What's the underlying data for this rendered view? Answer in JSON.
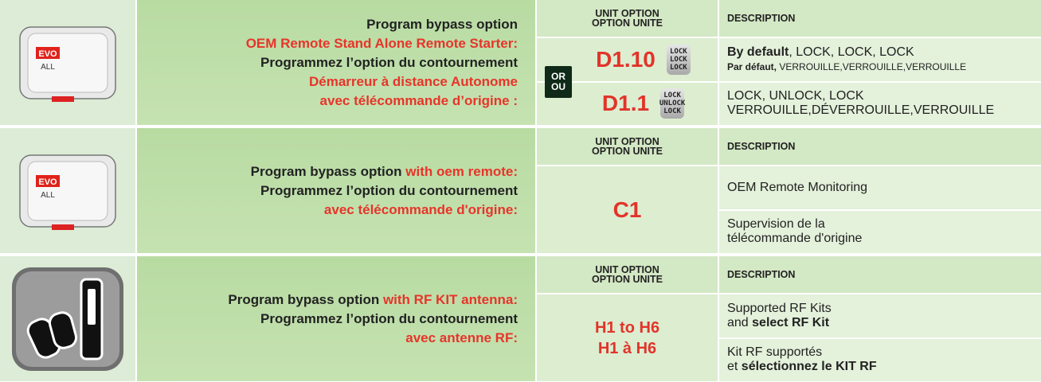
{
  "sections": [
    {
      "icon_text": [
        "EVO",
        "ALL"
      ],
      "instructions": [
        [
          {
            "text": "Program bypass option"
          }
        ],
        [
          {
            "text": "OEM Remote Stand Alone Remote Starter:",
            "red": true
          }
        ],
        [
          {
            "text": "Programmez l’option du contournement"
          }
        ],
        [
          {
            "text": "Démarreur à distance Autonome",
            "red": true
          }
        ],
        [
          {
            "text": "avec télécommande d’origine :",
            "red": true
          }
        ]
      ],
      "option_header": [
        "UNIT OPTION",
        "OPTION UNITE"
      ],
      "description_header": "DESCRIPTION",
      "or_badge": [
        "OR",
        "OU"
      ],
      "options": [
        {
          "code": [
            "D1.10"
          ],
          "locks": [
            "LOCK",
            "LOCK",
            "LOCK"
          ]
        },
        {
          "code": [
            "D1.1"
          ],
          "locks": [
            "LOCK",
            "UNLOCK",
            "LOCK"
          ]
        }
      ],
      "descriptions": [
        [
          [
            {
              "text": "By default",
              "bold": true
            },
            {
              "text": ", LOCK, LOCK, LOCK"
            }
          ],
          [
            {
              "text": "Par défaut,",
              "bold": true,
              "small": true
            },
            {
              "text": " VERROUILLE,VERROUILLE,VERROUILLE",
              "small": true
            }
          ]
        ],
        [
          [
            {
              "text": "LOCK, UNLOCK, LOCK"
            }
          ],
          [
            {
              "text": "VERROUILLE,DÉVERROUILLE,VERROUILLE"
            }
          ]
        ]
      ]
    },
    {
      "icon_text": [
        "EVO",
        "ALL"
      ],
      "instructions": [
        [
          {
            "text": "Program bypass option "
          },
          {
            "text": "with oem remote:",
            "red": true
          }
        ],
        [
          {
            "text": "Programmez l’option du contournement"
          }
        ],
        [
          {
            "text": "avec télécommande d'origine:",
            "red": true
          }
        ]
      ],
      "option_header": [
        "UNIT OPTION",
        "OPTION UNITE"
      ],
      "description_header": "DESCRIPTION",
      "options": [
        {
          "code": [
            "C1"
          ]
        }
      ],
      "descriptions": [
        [
          [
            {
              "text": "OEM Remote Monitoring"
            }
          ]
        ],
        [
          [
            {
              "text": "Supervision de la"
            }
          ],
          [
            {
              "text": "télécommande d'origine"
            }
          ]
        ]
      ]
    },
    {
      "instructions": [
        [
          {
            "text": "Program bypass option "
          },
          {
            "text": "with RF KIT antenna:",
            "red": true
          }
        ],
        [
          {
            "text": "Programmez l’option du contournement"
          }
        ],
        [
          {
            "text": "avec antenne RF:",
            "red": true
          }
        ]
      ],
      "option_header": [
        "UNIT OPTION",
        "OPTION UNITE"
      ],
      "description_header": "DESCRIPTION",
      "options": [
        {
          "code": [
            "H1 to H6",
            "H1 à  H6"
          ]
        }
      ],
      "descriptions": [
        [
          [
            {
              "text": "Supported RF Kits"
            }
          ],
          [
            {
              "text": "and "
            },
            {
              "text": "select RF Kit",
              "bold": true
            }
          ]
        ],
        [
          [
            {
              "text": "Kit RF supportés"
            }
          ],
          [
            {
              "text": "et "
            },
            {
              "text": "sélectionnez le KIT RF",
              "bold": true
            }
          ]
        ]
      ]
    }
  ]
}
